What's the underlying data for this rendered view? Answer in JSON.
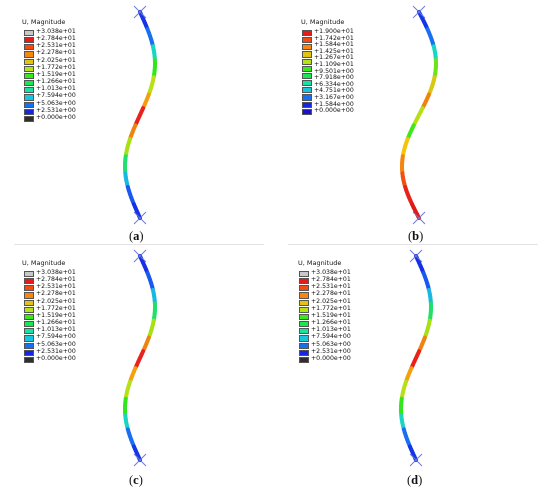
{
  "panels": [
    {
      "id": "a",
      "caption_open": "(",
      "caption_letter": "a",
      "caption_close": ")",
      "legend_title": "U, Magnitude",
      "ticks": [
        "+3.038e+01",
        "+2.784e+01",
        "+2.531e+01",
        "+2.278e+01",
        "+2.025e+01",
        "+1.772e+01",
        "+1.519e+01",
        "+1.266e+01",
        "+1.013e+01",
        "+7.594e+00",
        "+5.063e+00",
        "+2.531e+00",
        "+0.000e+00"
      ],
      "colors": [
        "#c8c8c8",
        "#e8191a",
        "#f24a12",
        "#f7860c",
        "#e0c410",
        "#b6e317",
        "#37e81a",
        "#17e84f",
        "#14e3a4",
        "#15c6de",
        "#1671f2",
        "#1626e6",
        "#2e2e2e"
      ],
      "color_profile": [
        "#1535e8",
        "#1a6ff0",
        "#18d6c2",
        "#32e61c",
        "#b7e017",
        "#f4a00e",
        "#e8231c",
        "#f08210",
        "#a8e015",
        "#20e06a",
        "#18b8e0",
        "#1a58f0",
        "#1530e6"
      ]
    },
    {
      "id": "b",
      "caption_open": "(",
      "caption_letter": "b",
      "caption_close": ")",
      "legend_title": "U, Magnitude",
      "ticks": [
        "+1.900e+01",
        "+1.742e+01",
        "+1.584e+01",
        "+1.425e+01",
        "+1.267e+01",
        "+1.109e+01",
        "+9.501e+00",
        "+7.918e+00",
        "+6.334e+00",
        "+4.751e+00",
        "+3.167e+00",
        "+1.584e+00",
        "+0.000e+00"
      ],
      "colors": [
        "#e8191a",
        "#f24a12",
        "#f7860c",
        "#e0c410",
        "#b6e317",
        "#37e81a",
        "#17e84f",
        "#14e3a4",
        "#15c6de",
        "#1671f2",
        "#1626e6",
        "#1a12c8"
      ],
      "color_profile": [
        "#1535e8",
        "#1a6ff0",
        "#18d6c2",
        "#6fe31a",
        "#d8c812",
        "#f0820e",
        "#b8df16",
        "#44e61a",
        "#f4c40c",
        "#f4850e",
        "#f05012",
        "#e8221a",
        "#e01818"
      ]
    },
    {
      "id": "c",
      "caption_open": "(",
      "caption_letter": "c",
      "caption_close": ")",
      "legend_title": "U, Magnitude",
      "ticks": [
        "+3.038e+01",
        "+2.784e+01",
        "+2.531e+01",
        "+2.278e+01",
        "+2.025e+01",
        "+1.772e+01",
        "+1.519e+01",
        "+1.266e+01",
        "+1.013e+01",
        "+7.594e+00",
        "+5.063e+00",
        "+2.531e+00",
        "+0.000e+00"
      ],
      "colors": [
        "#c8c8c8",
        "#e8191a",
        "#f24a12",
        "#f7860c",
        "#e0c410",
        "#b6e317",
        "#37e81a",
        "#17e84f",
        "#14e3a4",
        "#15c6de",
        "#1671f2",
        "#1626e6",
        "#2e2e2e"
      ],
      "color_profile": [
        "#1530e6",
        "#1a58f0",
        "#18b8e0",
        "#20e06a",
        "#a8e015",
        "#f08210",
        "#e8231c",
        "#f4a00e",
        "#b7e017",
        "#32e61c",
        "#18d6c2",
        "#1a6ff0",
        "#1535e8"
      ]
    },
    {
      "id": "d",
      "caption_open": "(",
      "caption_letter": "d",
      "caption_close": ")",
      "legend_title": "U, Magnitude",
      "ticks": [
        "+3.038e+01",
        "+2.784e+01",
        "+2.531e+01",
        "+2.278e+01",
        "+2.025e+01",
        "+1.772e+01",
        "+1.519e+01",
        "+1.266e+01",
        "+1.013e+01",
        "+7.594e+00",
        "+5.063e+00",
        "+2.531e+00",
        "+0.000e+00"
      ],
      "colors": [
        "#c8c8c8",
        "#e8191a",
        "#f24a12",
        "#f7860c",
        "#e0c410",
        "#b6e317",
        "#37e81a",
        "#17e84f",
        "#14e3a4",
        "#15c6de",
        "#1671f2",
        "#1626e6",
        "#2e2e2e"
      ],
      "color_profile": [
        "#1530e6",
        "#1a58f0",
        "#18b8e0",
        "#20e06a",
        "#a8e015",
        "#f08210",
        "#e8231c",
        "#f4a00e",
        "#b7e017",
        "#32e61c",
        "#18d6c2",
        "#1a6ff0",
        "#1535e8"
      ]
    }
  ]
}
